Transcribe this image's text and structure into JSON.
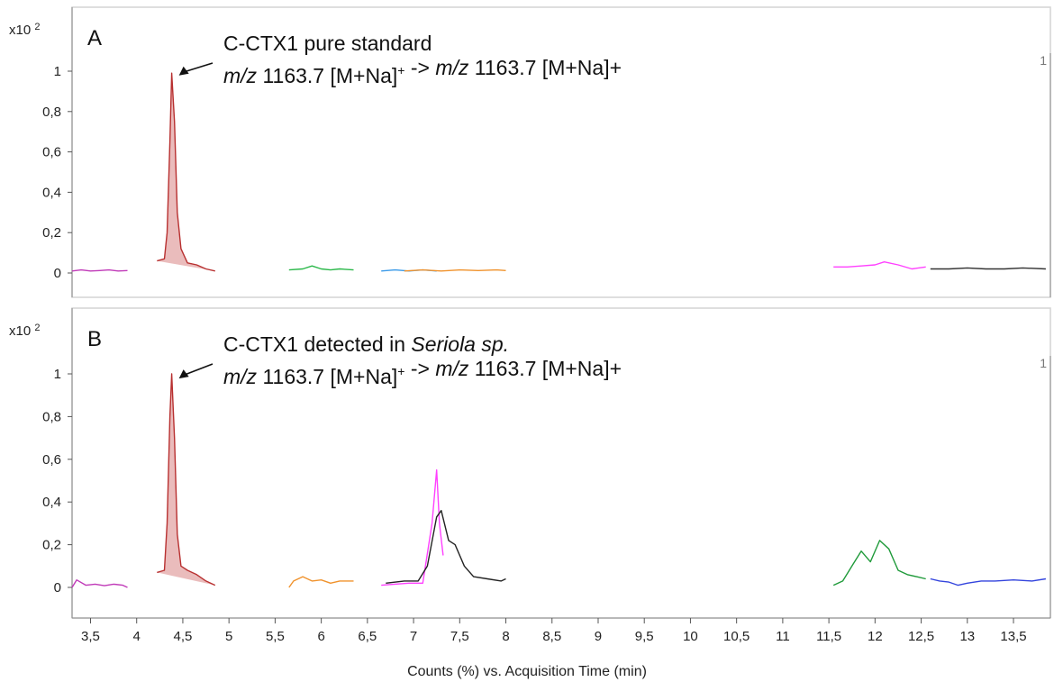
{
  "chart_data": {
    "type": "line",
    "xlabel": "Counts (%) vs. Acquisition Time (min)",
    "x_tick_labels": [
      "3,5",
      "4",
      "4,5",
      "5",
      "5,5",
      "6",
      "6,5",
      "7",
      "7,5",
      "8",
      "8,5",
      "9",
      "9,5",
      "10",
      "10,5",
      "11",
      "11,5",
      "12",
      "12,5",
      "13",
      "13,5"
    ],
    "x_ticks": [
      3.5,
      4,
      4.5,
      5,
      5.5,
      6,
      6.5,
      7,
      7.5,
      8,
      8.5,
      9,
      9.5,
      10,
      10.5,
      11,
      11.5,
      12,
      12.5,
      13,
      13.5
    ],
    "xlim": [
      3.3,
      13.9
    ],
    "y_tick_labels": [
      "0",
      "0,2",
      "0,4",
      "0,6",
      "0,8",
      "1"
    ],
    "y_ticks": [
      0,
      0.2,
      0.4,
      0.6,
      0.8,
      1.0
    ],
    "ylim": [
      -0.05,
      1.12
    ],
    "grid": false,
    "panels": [
      {
        "letter": "A",
        "multiplier": "x10",
        "multiplier_exp": "2",
        "corner_label": "1",
        "annotation": {
          "line1": "C-CTX1 pure standard",
          "line2_parts": [
            {
              "text": "m/z",
              "italic": true
            },
            {
              "text": " 1163.7 [M+Na]",
              "italic": false
            },
            {
              "text": "+",
              "italic": false,
              "sup": true
            },
            {
              "text": " -> ",
              "italic": false
            },
            {
              "text": "m/z",
              "italic": true
            },
            {
              "text": " 1163.7 [M+Na]+",
              "italic": false
            }
          ],
          "arrow_target": [
            4.38,
            0.97
          ]
        },
        "series": [
          {
            "color": "#c03ab8",
            "x": [
              3.3,
              3.4,
              3.5,
              3.6,
              3.7,
              3.8,
              3.9
            ],
            "y": [
              0.01,
              0.015,
              0.01,
              0.012,
              0.015,
              0.01,
              0.012
            ]
          },
          {
            "color": "#b83030",
            "fill": "#e8b5b5",
            "x": [
              4.22,
              4.3,
              4.33,
              4.36,
              4.38,
              4.41,
              4.44,
              4.48,
              4.55,
              4.65,
              4.75,
              4.85
            ],
            "y": [
              0.06,
              0.07,
              0.2,
              0.65,
              0.99,
              0.75,
              0.3,
              0.12,
              0.05,
              0.04,
              0.02,
              0.01
            ]
          },
          {
            "color": "#2bb84a",
            "x": [
              5.65,
              5.8,
              5.9,
              6.0,
              6.1,
              6.2,
              6.35
            ],
            "y": [
              0.015,
              0.02,
              0.035,
              0.02,
              0.015,
              0.02,
              0.015
            ]
          },
          {
            "color": "#3a9ae8",
            "x": [
              6.65,
              6.8,
              6.95,
              7.1,
              7.25
            ],
            "y": [
              0.01,
              0.015,
              0.01,
              0.015,
              0.01
            ]
          },
          {
            "color": "#f0922c",
            "x": [
              6.9,
              7.1,
              7.3,
              7.5,
              7.7,
              7.9,
              8.0
            ],
            "y": [
              0.01,
              0.015,
              0.01,
              0.015,
              0.012,
              0.015,
              0.012
            ]
          },
          {
            "color": "#ff40ff",
            "x": [
              11.55,
              11.7,
              11.85,
              12.0,
              12.1,
              12.25,
              12.4,
              12.55
            ],
            "y": [
              0.03,
              0.03,
              0.035,
              0.04,
              0.055,
              0.04,
              0.02,
              0.03
            ]
          },
          {
            "color": "#333333",
            "x": [
              12.6,
              12.8,
              13.0,
              13.2,
              13.4,
              13.6,
              13.85
            ],
            "y": [
              0.02,
              0.02,
              0.025,
              0.02,
              0.02,
              0.025,
              0.02
            ]
          }
        ]
      },
      {
        "letter": "B",
        "multiplier": "x10",
        "multiplier_exp": "2",
        "corner_label": "1",
        "annotation": {
          "line1_parts": [
            {
              "text": "C-CTX1 detected in ",
              "italic": false
            },
            {
              "text": "Seriola sp.",
              "italic": true
            }
          ],
          "line2_parts": [
            {
              "text": "m/z",
              "italic": true
            },
            {
              "text": " 1163.7 [M+Na]",
              "italic": false
            },
            {
              "text": "+",
              "italic": false,
              "sup": true
            },
            {
              "text": " -> ",
              "italic": false
            },
            {
              "text": "m/z",
              "italic": true
            },
            {
              "text": " 1163.7 [M+Na]+",
              "italic": false
            }
          ],
          "arrow_target": [
            4.38,
            0.97
          ]
        },
        "series": [
          {
            "color": "#c03ab8",
            "x": [
              3.3,
              3.35,
              3.45,
              3.55,
              3.65,
              3.75,
              3.85,
              3.9
            ],
            "y": [
              0.0,
              0.035,
              0.01,
              0.015,
              0.008,
              0.015,
              0.01,
              0.0
            ]
          },
          {
            "color": "#b83030",
            "fill": "#e8b5b5",
            "x": [
              4.22,
              4.3,
              4.33,
              4.36,
              4.38,
              4.41,
              4.44,
              4.48,
              4.55,
              4.65,
              4.75,
              4.85
            ],
            "y": [
              0.07,
              0.08,
              0.3,
              0.8,
              1.0,
              0.7,
              0.25,
              0.1,
              0.08,
              0.06,
              0.03,
              0.01
            ]
          },
          {
            "color": "#f0922c",
            "x": [
              5.65,
              5.7,
              5.8,
              5.9,
              6.0,
              6.1,
              6.2,
              6.35
            ],
            "y": [
              0.0,
              0.03,
              0.05,
              0.03,
              0.035,
              0.02,
              0.03,
              0.03
            ]
          },
          {
            "color": "#ff40ff",
            "x": [
              6.65,
              6.8,
              6.95,
              7.1,
              7.2,
              7.25,
              7.28,
              7.32
            ],
            "y": [
              0.01,
              0.015,
              0.02,
              0.02,
              0.3,
              0.55,
              0.3,
              0.15
            ]
          },
          {
            "color": "#222222",
            "x": [
              6.7,
              6.9,
              7.05,
              7.15,
              7.25,
              7.3,
              7.38,
              7.45,
              7.55,
              7.65,
              7.8,
              7.95,
              8.0
            ],
            "y": [
              0.02,
              0.03,
              0.03,
              0.1,
              0.33,
              0.36,
              0.22,
              0.2,
              0.1,
              0.05,
              0.04,
              0.03,
              0.04
            ]
          },
          {
            "color": "#1f9a3a",
            "x": [
              11.55,
              11.65,
              11.75,
              11.85,
              11.95,
              12.05,
              12.15,
              12.25,
              12.35,
              12.45,
              12.55
            ],
            "y": [
              0.01,
              0.03,
              0.1,
              0.17,
              0.12,
              0.22,
              0.18,
              0.08,
              0.06,
              0.05,
              0.04
            ]
          },
          {
            "color": "#3344dd",
            "x": [
              12.6,
              12.7,
              12.8,
              12.9,
              13.0,
              13.15,
              13.3,
              13.5,
              13.7,
              13.85
            ],
            "y": [
              0.04,
              0.03,
              0.025,
              0.01,
              0.02,
              0.03,
              0.03,
              0.035,
              0.03,
              0.04
            ]
          }
        ]
      }
    ]
  }
}
